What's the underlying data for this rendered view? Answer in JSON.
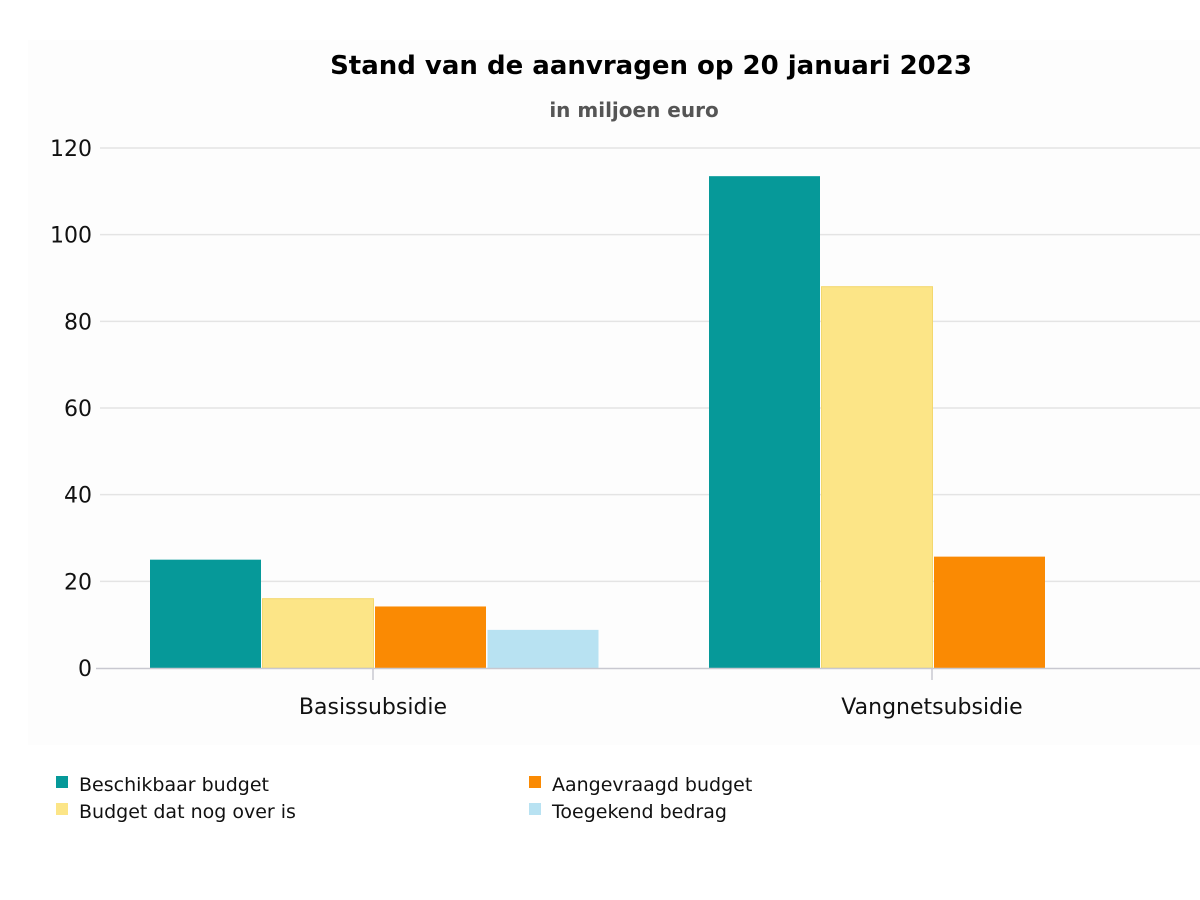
{
  "chart_data": {
    "type": "bar",
    "title": "Stand van de aanvragen op 20 januari 2023",
    "subtitle": "in miljoen euro",
    "xlabel": "",
    "ylabel": "",
    "ylim": [
      0,
      120
    ],
    "yticks": [
      0,
      20,
      40,
      60,
      80,
      100,
      120
    ],
    "ytick_labels": [
      "0",
      "20",
      "40",
      "60",
      "80",
      "100",
      "120"
    ],
    "grid": true,
    "legend_position": "bottom",
    "categories": [
      "Basissubsidie",
      "Vangnetsubsidie"
    ],
    "series": [
      {
        "name": "Beschikbaar budget",
        "color": "#069999",
        "values": [
          25,
          113.5
        ]
      },
      {
        "name": "Budget dat nog over is",
        "color": "#FCE587",
        "values": [
          16,
          88
        ]
      },
      {
        "name": "Aangevraagd budget",
        "color": "#FA8A03",
        "values": [
          14.2,
          25.7
        ]
      },
      {
        "name": "Toegekend bedrag",
        "color": "#B8E2F2",
        "values": [
          8.8,
          null
        ]
      }
    ],
    "legend_order": [
      0,
      2,
      1,
      3
    ]
  }
}
